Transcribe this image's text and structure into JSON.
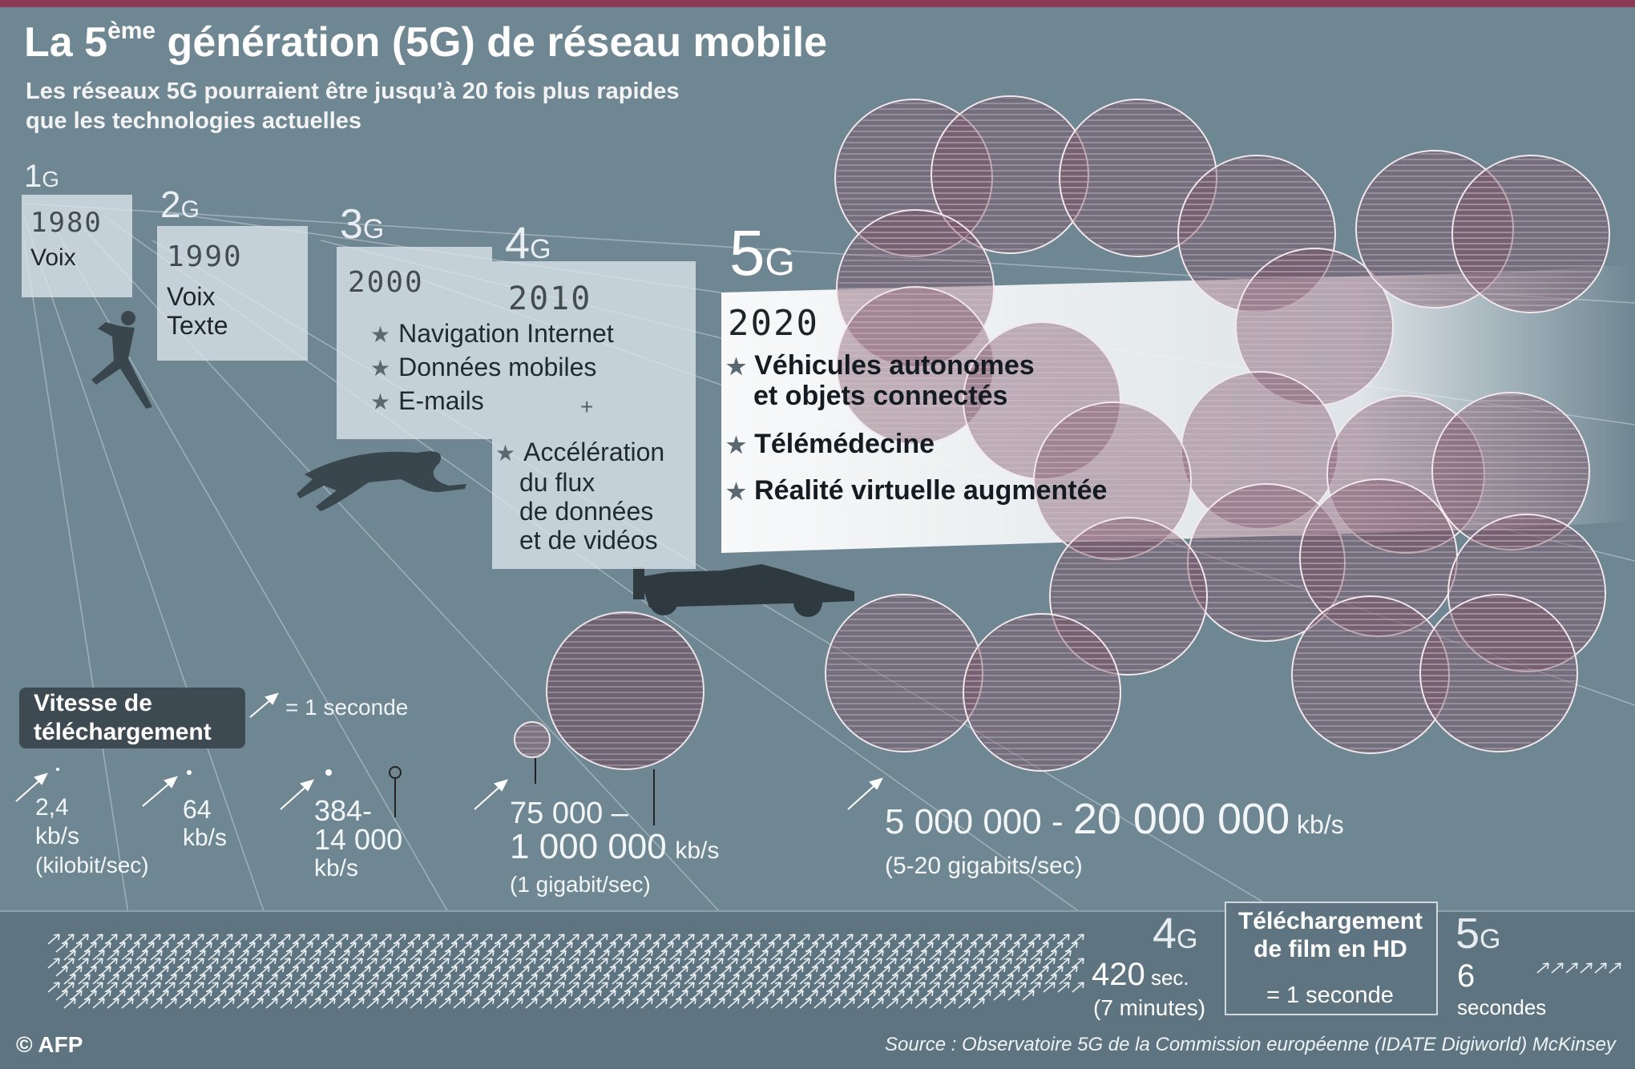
{
  "header": {
    "title_main": "La 5",
    "title_sup": "ème",
    "title_rest": " génération (5G) de réseau mobile",
    "subtitle_line1": "Les réseaux 5G pourraient être jusqu’à 20 fois plus rapides",
    "subtitle_line2": "que les technologies actuelles"
  },
  "generations": [
    {
      "num": "1",
      "g": "G",
      "year": "1980",
      "text": [
        "Voix"
      ]
    },
    {
      "num": "2",
      "g": "G",
      "year": "1990",
      "text": [
        "Voix",
        "Texte"
      ]
    },
    {
      "num": "3",
      "g": "G",
      "year": "2000",
      "features": [
        "Navigation Internet",
        "Données mobiles",
        "E-mails"
      ],
      "plus": "+"
    },
    {
      "num": "4",
      "g": "G",
      "year": "2010",
      "features": [
        "Accélération",
        "du flux",
        "de données",
        "et de vidéos"
      ]
    },
    {
      "num": "5",
      "g": "G",
      "year": "2020",
      "features": [
        "Véhicules autonomes",
        "et objets connectés",
        "Télémédecine",
        "Réalité virtuelle augmentée"
      ]
    }
  ],
  "legend": {
    "title_line1": "Vitesse  de",
    "title_line2": "téléchargement",
    "arrow_meaning": "= 1 seconde"
  },
  "speeds": {
    "s1": [
      "2,4",
      "kb/s",
      "(kilobit/sec)"
    ],
    "s2": [
      "64",
      "kb/s"
    ],
    "s3": [
      "384-",
      "14 000",
      "kb/s"
    ],
    "s4_line1": "75 000 –",
    "s4_line2": "1 000 000",
    "s4_unit": "kb/s",
    "s4_line3": "(1 gigabit/sec)",
    "s5_a": "5 000 000 - ",
    "s5_b": "20 000 000",
    "s5_unit": " kb/s",
    "s5_sub": "(5-20 gigabits/sec)"
  },
  "download": {
    "g4_num": "4",
    "g4_g": "G",
    "g4_value": "420",
    "g4_unit": " sec.",
    "g4_minutes": "(7 minutes)",
    "box_line1": "Téléchargement",
    "box_line2": "de film en HD",
    "box_sec": "= 1 seconde",
    "g5_num": "5",
    "g5_g": "G",
    "g5_value": "6",
    "g5_unit": "secondes"
  },
  "footer": {
    "credit": "© AFP",
    "source": "Source : Observatoire 5G de la Commission européenne (IDATE Digiworld) McKinsey"
  },
  "colors": {
    "background": "#6f8793",
    "accent": "#8a3a55",
    "circle_fill": "#7a4f62"
  }
}
